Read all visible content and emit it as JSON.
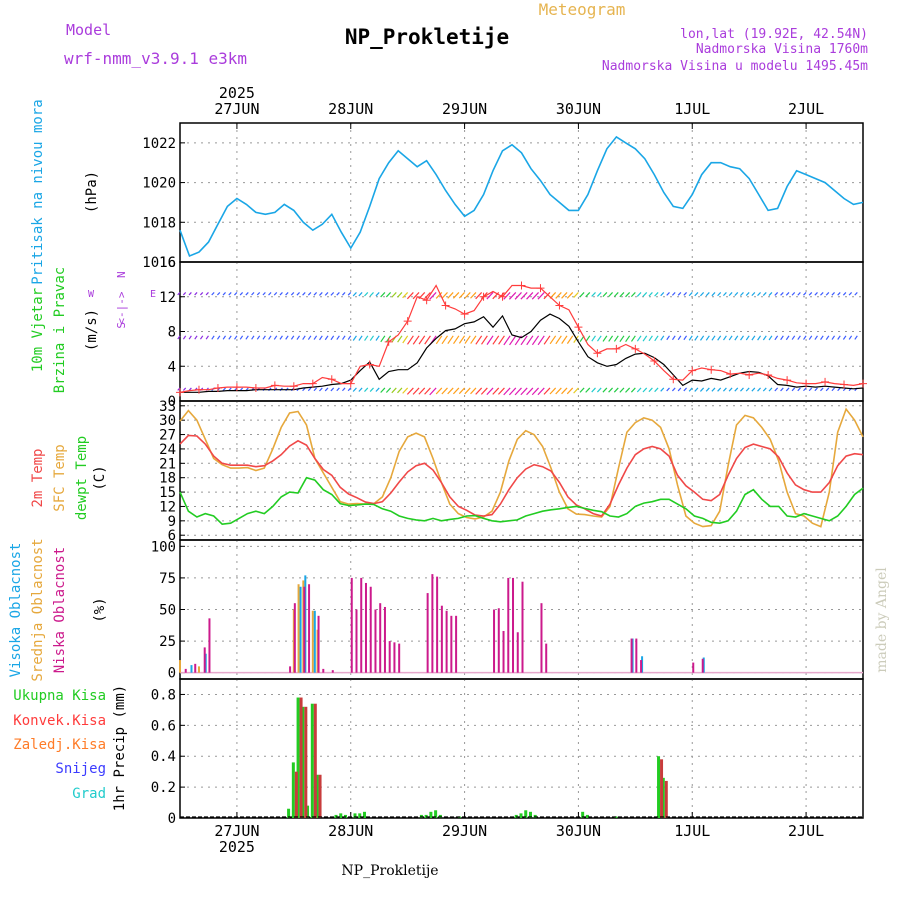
{
  "header": {
    "title": "NP_Prokletije",
    "subtitle": "Meteogram",
    "model_label": "Model",
    "model_name": "wrf-nmm_v3.9.1 e3km",
    "lonlat": "lon,lat (19.92E, 42.54N)",
    "altitude": "Nadmorska Visina 1760m",
    "model_altitude": "Nadmorska Visina u modelu 1495.45m",
    "footer": "NP_Prokletije",
    "watermark": "made by Angel"
  },
  "colors": {
    "pressure": "#1aa6e6",
    "temp2m": "#f04848",
    "sfc": "#e6a83c",
    "dew": "#22cc22",
    "wind": "#000000",
    "gust": "#ff3c3c",
    "magenta": "#cc1a8c",
    "purple": "#aa3cdc",
    "grid": "#999999",
    "total_rain": "#22cc22",
    "conv_rain": "#ff3c3c",
    "freezing": "#ff7c28",
    "snow": "#3c3cff",
    "hail": "#22cccc"
  },
  "chart_data": {
    "type": "meteogram",
    "days": [
      "27JUN",
      "28JUN",
      "29JUN",
      "30JUN",
      "1JUL",
      "2JUL"
    ],
    "year": "2025",
    "x_range_hours": [
      0,
      144
    ],
    "panels": [
      {
        "id": "pressure",
        "labels": [
          "Pritisak na nivou mora",
          "(hPa)"
        ],
        "ylim": [
          1016,
          1023
        ],
        "yticks": [
          1016,
          1018,
          1020,
          1022
        ],
        "series": [
          {
            "name": "Pritisak",
            "values": [
              1017.6,
              1016.3,
              1016.5,
              1017.0,
              1017.9,
              1018.8,
              1019.2,
              1018.9,
              1018.5,
              1018.4,
              1018.5,
              1018.9,
              1018.6,
              1018.0,
              1017.6,
              1017.9,
              1018.4,
              1017.5,
              1016.7,
              1017.5,
              1018.8,
              1020.2,
              1021.0,
              1021.6,
              1021.2,
              1020.8,
              1021.1,
              1020.4,
              1019.6,
              1018.9,
              1018.3,
              1018.6,
              1019.4,
              1020.6,
              1021.6,
              1021.9,
              1021.5,
              1020.7,
              1020.1,
              1019.4,
              1019.0,
              1018.6,
              1018.6,
              1019.4,
              1020.6,
              1021.7,
              1022.3,
              1022.0,
              1021.7,
              1021.2,
              1020.4,
              1019.5,
              1018.8,
              1018.7,
              1019.4,
              1020.4,
              1021.0,
              1021.0,
              1020.8,
              1020.7,
              1020.2,
              1019.4,
              1018.6,
              1018.7,
              1019.8,
              1020.6,
              1020.4,
              1020.2,
              1020.0,
              1019.6,
              1019.2,
              1018.9,
              1019.0
            ]
          }
        ]
      },
      {
        "id": "wind",
        "labels": [
          "10m Vjetar",
          "Brzina i Pravac",
          "(m/s)"
        ],
        "compass": [
          "N",
          "<-|->",
          "S",
          "W",
          "E"
        ],
        "ylim": [
          0,
          16
        ],
        "yticks": [
          0,
          4,
          8,
          12,
          16
        ],
        "series": [
          {
            "name": "Brzina vjetra",
            "values": [
              1.0,
              1.0,
              1.0,
              1.1,
              1.1,
              1.2,
              1.2,
              1.2,
              1.3,
              1.3,
              1.3,
              1.3,
              1.3,
              1.5,
              1.6,
              1.7,
              1.9,
              2.0,
              2.4,
              3.5,
              4.5,
              2.5,
              3.4,
              3.6,
              3.6,
              4.4,
              6.1,
              7.2,
              8.1,
              8.3,
              8.9,
              9.1,
              9.7,
              8.5,
              9.8,
              7.6,
              7.3,
              8.0,
              9.3,
              10.0,
              9.5,
              8.6,
              6.8,
              5.1,
              4.4,
              4.0,
              4.2,
              4.9,
              5.4,
              5.5,
              5.0,
              4.2,
              3.0,
              1.8,
              2.4,
              2.3,
              2.6,
              2.4,
              2.8,
              3.2,
              3.4,
              3.3,
              2.9,
              1.9,
              1.8,
              1.6,
              1.7,
              1.6,
              1.7,
              1.6,
              1.5,
              1.4,
              1.5
            ]
          },
          {
            "name": "Udari",
            "values": [
              1.0,
              1.2,
              1.3,
              1.3,
              1.5,
              1.6,
              1.6,
              1.6,
              1.5,
              1.5,
              1.8,
              1.7,
              1.7,
              2.0,
              2.0,
              2.7,
              2.5,
              2.0,
              2.0,
              4.0,
              4.2,
              4.0,
              6.8,
              7.6,
              9.2,
              12.0,
              11.6,
              13.3,
              11.0,
              10.6,
              10.0,
              10.4,
              12.0,
              12.6,
              12.0,
              13.3,
              13.3,
              13.0,
              13.0,
              12.0,
              11.0,
              10.5,
              8.5,
              6.5,
              5.5,
              6.0,
              6.0,
              6.5,
              6.0,
              5.4,
              4.6,
              3.5,
              2.5,
              2.4,
              3.5,
              3.8,
              3.6,
              3.5,
              3.1,
              3.2,
              3.0,
              3.2,
              3.0,
              2.6,
              2.4,
              2.1,
              2.0,
              2.0,
              2.2,
              2.0,
              1.9,
              1.8,
              2.0
            ]
          }
        ]
      },
      {
        "id": "temp",
        "labels": [
          "2m Temp",
          "SFC Temp",
          "dewpt Temp",
          "(C)"
        ],
        "ylim": [
          5,
          34
        ],
        "yticks": [
          6,
          9,
          12,
          15,
          18,
          21,
          24,
          27,
          30,
          33
        ],
        "series": [
          {
            "name": "2m Temp",
            "values": [
              25.0,
              26.8,
              26.7,
              25.0,
              22.5,
              21.0,
              20.6,
              20.6,
              20.6,
              20.3,
              20.5,
              21.5,
              22.8,
              24.6,
              25.7,
              24.8,
              22.0,
              19.7,
              18.5,
              16.0,
              14.6,
              13.8,
              12.9,
              12.6,
              13.0,
              14.8,
              17.1,
              19.2,
              20.5,
              21.0,
              19.6,
              17.0,
              14.0,
              12.0,
              11.2,
              10.2,
              10.0,
              10.3,
              12.5,
              15.5,
              18.0,
              19.8,
              20.7,
              20.3,
              19.4,
              17.0,
              14.0,
              12.3,
              11.5,
              10.5,
              10.0,
              12.5,
              16.5,
              20.0,
              22.8,
              24.0,
              24.5,
              24.0,
              22.5,
              18.5,
              16.3,
              15.0,
              13.5,
              13.2,
              14.5,
              18.5,
              22.0,
              24.3,
              25.0,
              24.5,
              24.0,
              22.3,
              19.0,
              16.5,
              15.5,
              15.0,
              15.0,
              17.0,
              20.5,
              22.5,
              23.0,
              22.8
            ]
          },
          {
            "name": "SFC Temp",
            "values": [
              29.8,
              32.0,
              30.0,
              26.0,
              22.0,
              20.7,
              20.0,
              20.0,
              20.1,
              19.5,
              20.0,
              24.0,
              28.5,
              31.5,
              31.8,
              29.0,
              22.0,
              19.0,
              16.0,
              13.0,
              12.5,
              12.6,
              12.5,
              12.6,
              14.0,
              18.0,
              23.5,
              26.5,
              27.3,
              26.5,
              22.0,
              17.0,
              12.5,
              10.5,
              9.7,
              9.4,
              9.8,
              11.0,
              15.0,
              21.5,
              26.0,
              27.8,
              27.0,
              24.5,
              20.0,
              15.0,
              11.5,
              10.4,
              10.3,
              10.0,
              9.8,
              12.0,
              20.0,
              27.5,
              29.5,
              30.5,
              30.0,
              28.5,
              24.0,
              16.5,
              10.0,
              8.5,
              7.8,
              8.0,
              11.0,
              20.5,
              29.0,
              31.0,
              30.5,
              28.5,
              26.0,
              21.5,
              15.0,
              10.5,
              10.0,
              8.5,
              7.8,
              15.0,
              27.5,
              32.3,
              30.0,
              26.5
            ]
          },
          {
            "name": "Dewpt Temp",
            "values": [
              15.0,
              11.0,
              9.8,
              10.5,
              10.0,
              8.3,
              8.5,
              9.5,
              10.5,
              11.0,
              10.5,
              12.0,
              14.0,
              15.0,
              14.8,
              18.0,
              17.5,
              15.5,
              14.5,
              12.6,
              12.2,
              12.3,
              12.5,
              12.4,
              11.5,
              11.0,
              10.0,
              9.5,
              9.2,
              9.0,
              9.5,
              9.0,
              9.3,
              9.5,
              10.0,
              10.1,
              9.5,
              9.0,
              8.8,
              9.0,
              9.2,
              10.0,
              10.5,
              11.0,
              11.3,
              11.5,
              11.8,
              12.0,
              11.6,
              11.2,
              10.9,
              10.0,
              9.8,
              10.5,
              12.0,
              12.7,
              13.0,
              13.5,
              13.5,
              12.5,
              11.5,
              10.0,
              9.5,
              8.7,
              8.5,
              9.0,
              11.0,
              14.5,
              15.5,
              13.5,
              12.0,
              12.0,
              10.0,
              9.8,
              10.5,
              10.0,
              9.5,
              9.0,
              10.0,
              12.0,
              14.5,
              15.8
            ]
          }
        ]
      },
      {
        "id": "cloud",
        "labels": [
          "Visoka Oblacnost",
          "Srednja Oblacnost",
          "Niska Oblacnost",
          "(%)"
        ],
        "ylim": [
          -5,
          105
        ],
        "yticks": [
          0,
          25,
          50,
          75,
          100
        ],
        "bars": {
          "low": [
            [
              1,
              3
            ],
            [
              3,
              7
            ],
            [
              5,
              20
            ],
            [
              6,
              43
            ],
            [
              23,
              5
            ],
            [
              24,
              55
            ],
            [
              26,
              68
            ],
            [
              27,
              70
            ],
            [
              29,
              45
            ],
            [
              30,
              3
            ],
            [
              32,
              2
            ],
            [
              36,
              75
            ],
            [
              37,
              50
            ],
            [
              38,
              75
            ],
            [
              39,
              71
            ],
            [
              40,
              68
            ],
            [
              41,
              50
            ],
            [
              42,
              55
            ],
            [
              43,
              52
            ],
            [
              44,
              25
            ],
            [
              45,
              24
            ],
            [
              46,
              23
            ],
            [
              52,
              63
            ],
            [
              53,
              78
            ],
            [
              54,
              76
            ],
            [
              55,
              53
            ],
            [
              56,
              49
            ],
            [
              57,
              45
            ],
            [
              58,
              45
            ],
            [
              66,
              50
            ],
            [
              67,
              51
            ],
            [
              68,
              33
            ],
            [
              69,
              75
            ],
            [
              70,
              75
            ],
            [
              71,
              32
            ],
            [
              72,
              72
            ],
            [
              76,
              55
            ],
            [
              77,
              23
            ],
            [
              95,
              27
            ],
            [
              96,
              27
            ],
            [
              97,
              10
            ],
            [
              108,
              8
            ],
            [
              110,
              11
            ]
          ],
          "mid": [
            [
              0,
              10
            ],
            [
              4,
              5
            ],
            [
              24,
              50
            ],
            [
              25,
              70
            ],
            [
              26,
              73
            ],
            [
              28,
              49
            ],
            [
              29,
              34
            ]
          ],
          "high": [
            [
              2,
              6
            ],
            [
              5,
              15
            ],
            [
              25,
              68
            ],
            [
              26,
              77
            ],
            [
              28,
              49
            ],
            [
              95,
              27
            ],
            [
              97,
              13
            ],
            [
              110,
              12
            ]
          ]
        }
      },
      {
        "id": "precip",
        "labels": [
          "Ukupna Kisa",
          "Konvek.Kisa",
          "Zaledj.Kisa",
          "Snijeg",
          "Grad",
          "1hr Precip (mm)"
        ],
        "ylim": [
          0,
          0.9
        ],
        "yticks": [
          0,
          0.2,
          0.4,
          0.6,
          0.8
        ],
        "bars": {
          "total": [
            [
              23,
              0.06
            ],
            [
              24,
              0.36
            ],
            [
              25,
              0.78
            ],
            [
              26,
              0.72
            ],
            [
              27,
              0.08
            ],
            [
              28,
              0.74
            ],
            [
              29,
              0.28
            ],
            [
              33,
              0.02
            ],
            [
              34,
              0.03
            ],
            [
              35,
              0.02
            ],
            [
              37,
              0.03
            ],
            [
              38,
              0.03
            ],
            [
              39,
              0.04
            ],
            [
              51,
              0.02
            ],
            [
              52,
              0.02
            ],
            [
              53,
              0.04
            ],
            [
              54,
              0.05
            ],
            [
              55,
              0.02
            ],
            [
              59,
              0.01
            ],
            [
              71,
              0.02
            ],
            [
              72,
              0.03
            ],
            [
              73,
              0.05
            ],
            [
              74,
              0.04
            ],
            [
              75,
              0.02
            ],
            [
              85,
              0.04
            ],
            [
              86,
              0.02
            ],
            [
              92,
              0.01
            ],
            [
              101,
              0.4
            ],
            [
              102,
              0.26
            ]
          ],
          "conv": [
            [
              24,
              0.3
            ],
            [
              25,
              0.78
            ],
            [
              26,
              0.72
            ],
            [
              28,
              0.74
            ],
            [
              29,
              0.28
            ],
            [
              101,
              0.38
            ],
            [
              102,
              0.24
            ]
          ]
        }
      }
    ]
  }
}
